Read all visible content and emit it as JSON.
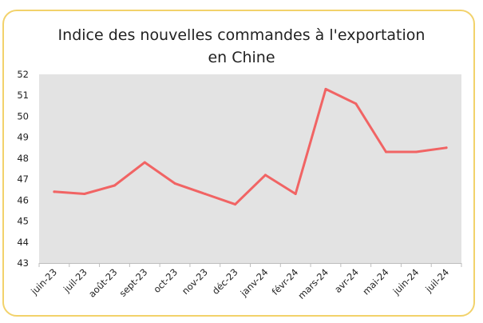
{
  "chart_data": {
    "type": "line",
    "title_lines": [
      "Indice des nouvelles commandes à l'exportation",
      "en Chine"
    ],
    "categories": [
      "juin-23",
      "juil-23",
      "août-23",
      "sept-23",
      "oct-23",
      "nov-23",
      "déc-23",
      "janv-24",
      "févr-24",
      "mars-24",
      "avr-24",
      "mai-24",
      "juin-24",
      "juil-24"
    ],
    "values": [
      46.4,
      46.3,
      46.7,
      47.8,
      46.8,
      46.3,
      45.8,
      47.2,
      46.3,
      51.3,
      50.6,
      48.3,
      48.3,
      48.5
    ],
    "ylim": [
      43,
      52
    ],
    "yticks": [
      43,
      44,
      45,
      46,
      47,
      48,
      49,
      50,
      51,
      52
    ],
    "xlabel": "",
    "ylabel": "",
    "grid": false,
    "legend": "none",
    "colors": {
      "line": "#f16464",
      "plot_background": "#e3e3e3",
      "border": "#f2d26b"
    }
  }
}
